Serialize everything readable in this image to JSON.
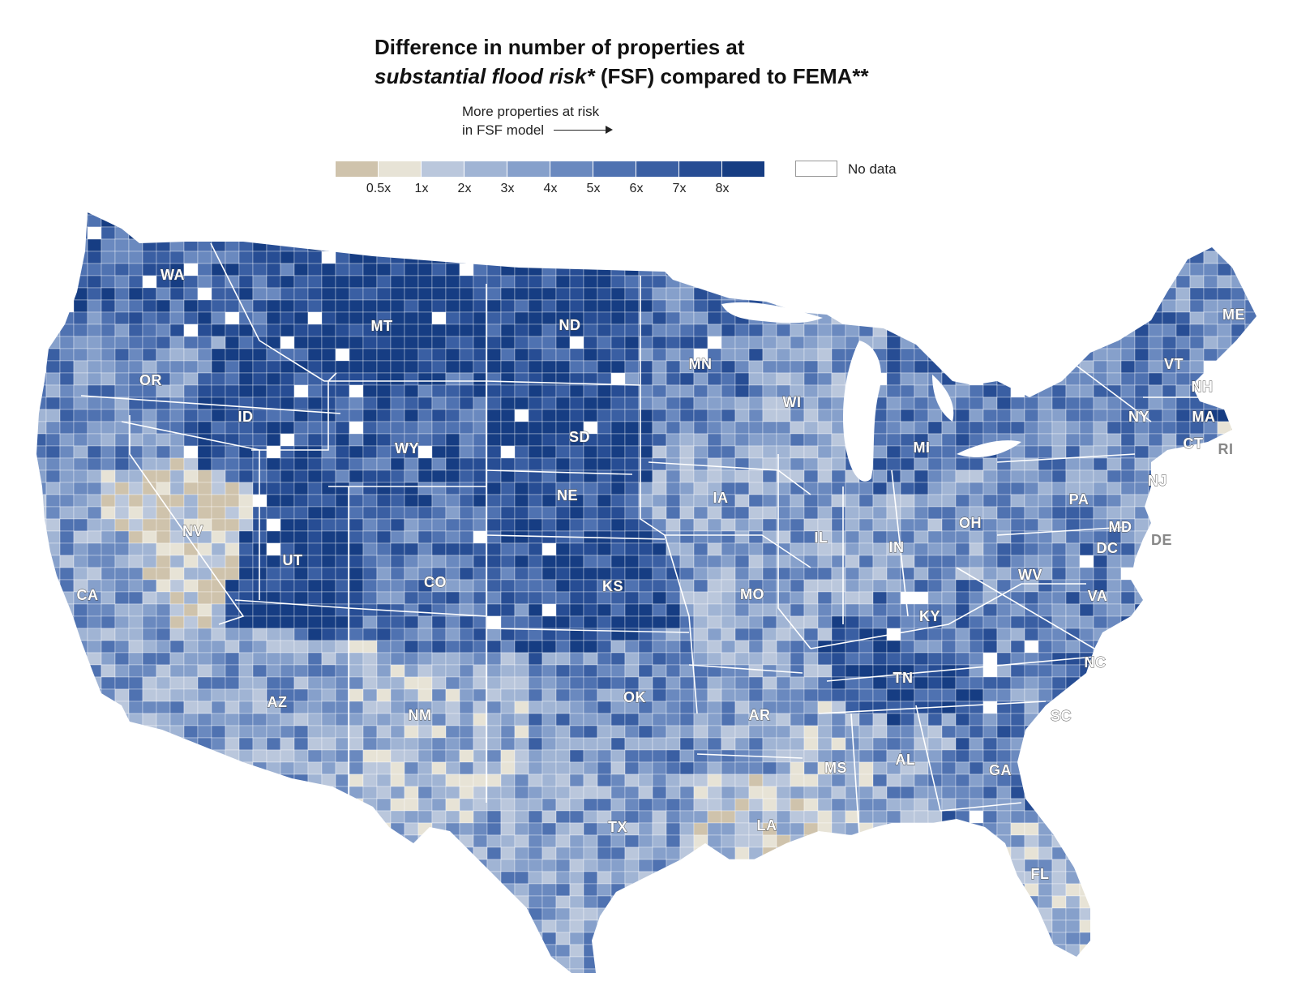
{
  "title_line1": "Difference in number of properties at",
  "title_italic": "substantial flood risk*",
  "title_rest": " (FSF) compared to FEMA**",
  "arrow_note_line1": "More properties at risk",
  "arrow_note_line2": "in FSF model",
  "legend": {
    "colors": [
      "#cfc3ac",
      "#e7e3d6",
      "#bac7dc",
      "#a0b4d4",
      "#86a0cb",
      "#6a89bf",
      "#4f72b1",
      "#3a5fa3",
      "#274d94",
      "#163d83"
    ],
    "ticks": [
      "0.5x",
      "1x",
      "2x",
      "3x",
      "4x",
      "5x",
      "6x",
      "7x",
      "8x"
    ],
    "no_data_label": "No data",
    "no_data_color": "#ffffff"
  },
  "states": [
    {
      "abbr": "WA",
      "level": 7
    },
    {
      "abbr": "OR",
      "level": 5
    },
    {
      "abbr": "CA",
      "level": 4
    },
    {
      "abbr": "NV",
      "level": 1
    },
    {
      "abbr": "ID",
      "level": 8
    },
    {
      "abbr": "MT",
      "level": 9
    },
    {
      "abbr": "WY",
      "level": 7
    },
    {
      "abbr": "UT",
      "level": 9
    },
    {
      "abbr": "AZ",
      "level": 4
    },
    {
      "abbr": "CO",
      "level": 6
    },
    {
      "abbr": "NM",
      "level": 3
    },
    {
      "abbr": "ND",
      "level": 8
    },
    {
      "abbr": "SD",
      "level": 9
    },
    {
      "abbr": "NE",
      "level": 8
    },
    {
      "abbr": "KS",
      "level": 8
    },
    {
      "abbr": "OK",
      "level": 5
    },
    {
      "abbr": "TX",
      "level": 4
    },
    {
      "abbr": "MN",
      "level": 6
    },
    {
      "abbr": "IA",
      "level": 4
    },
    {
      "abbr": "MO",
      "level": 4
    },
    {
      "abbr": "AR",
      "level": 4
    },
    {
      "abbr": "LA",
      "level": 2
    },
    {
      "abbr": "WI",
      "level": 4
    },
    {
      "abbr": "IL",
      "level": 4
    },
    {
      "abbr": "MI",
      "level": 6
    },
    {
      "abbr": "IN",
      "level": 4
    },
    {
      "abbr": "OH",
      "level": 4
    },
    {
      "abbr": "KY",
      "level": 6
    },
    {
      "abbr": "TN",
      "level": 8
    },
    {
      "abbr": "MS",
      "level": 3
    },
    {
      "abbr": "AL",
      "level": 4
    },
    {
      "abbr": "GA",
      "level": 6
    },
    {
      "abbr": "FL",
      "level": 3
    },
    {
      "abbr": "SC",
      "level": 5
    },
    {
      "abbr": "NC",
      "level": 6
    },
    {
      "abbr": "VA",
      "level": 6
    },
    {
      "abbr": "WV",
      "level": 5
    },
    {
      "abbr": "PA",
      "level": 5
    },
    {
      "abbr": "NY",
      "level": 5
    },
    {
      "abbr": "VT",
      "level": 6
    },
    {
      "abbr": "NH",
      "level": 6
    },
    {
      "abbr": "ME",
      "level": 5
    },
    {
      "abbr": "MA",
      "level": 7
    },
    {
      "abbr": "CT",
      "level": 5
    },
    {
      "abbr": "RI",
      "level": 1
    },
    {
      "abbr": "NJ",
      "level": 5
    },
    {
      "abbr": "DE",
      "level": 2
    },
    {
      "abbr": "MD",
      "level": 5
    },
    {
      "abbr": "DC",
      "level": 6
    }
  ]
}
